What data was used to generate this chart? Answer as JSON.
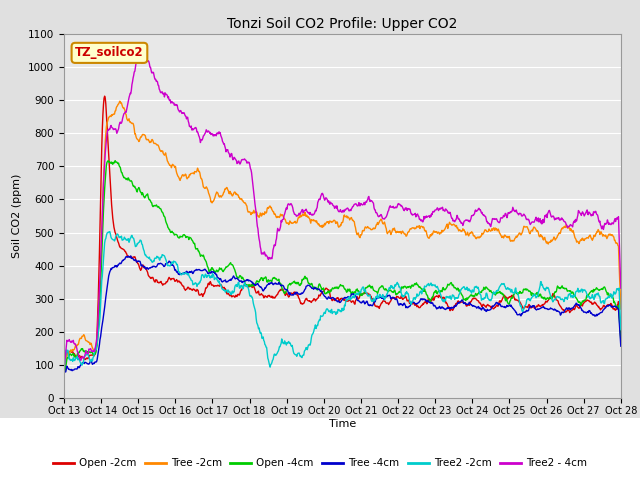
{
  "title": "Tonzi Soil CO2 Profile: Upper CO2",
  "ylabel": "Soil CO2 (ppm)",
  "xlabel": "Time",
  "watermark": "TZ_soilco2",
  "ylim": [
    0,
    1100
  ],
  "yticks": [
    0,
    100,
    200,
    300,
    400,
    500,
    600,
    700,
    800,
    900,
    1000,
    1100
  ],
  "x_tick_labels": [
    "Oct 13",
    "Oct 14",
    "Oct 15",
    "Oct 16",
    "Oct 17",
    "Oct 18",
    "Oct 19",
    "Oct 20",
    "Oct 21",
    "Oct 22",
    "Oct 23",
    "Oct 24",
    "Oct 25",
    "Oct 26",
    "Oct 27",
    "Oct 28"
  ],
  "series_names": [
    "Open -2cm",
    "Tree -2cm",
    "Open -4cm",
    "Tree -4cm",
    "Tree2 -2cm",
    "Tree2 - 4cm"
  ],
  "series_colors": [
    "#dd0000",
    "#ff8800",
    "#00cc00",
    "#0000cc",
    "#00cccc",
    "#cc00cc"
  ],
  "fig_bg": "#e0e0e0",
  "plot_bg": "#e8e8e8",
  "grid_color": "#ffffff",
  "title_fontsize": 10,
  "label_fontsize": 8,
  "tick_fontsize": 7,
  "legend_fontsize": 7.5
}
